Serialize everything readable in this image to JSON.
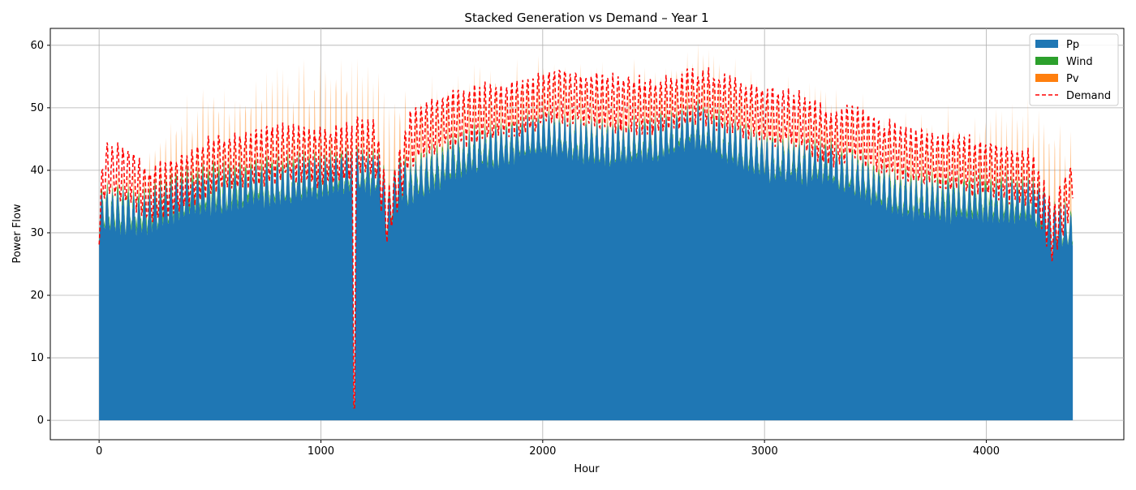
{
  "chart_data": {
    "type": "area",
    "title": "Stacked Generation vs Demand – Year 1",
    "xlabel": "Hour",
    "ylabel": "Power Flow",
    "xlim": [
      -220,
      4620
    ],
    "ylim": [
      -3.1,
      62.7
    ],
    "xticks": [
      0,
      1000,
      2000,
      3000,
      4000
    ],
    "yticks": [
      0,
      10,
      20,
      30,
      40,
      50,
      60
    ],
    "grid": true,
    "legend_position": "upper right",
    "series": [
      {
        "name": "Pp",
        "kind": "stacked-area",
        "color": "#1f77b4",
        "description_points_x": [
          0,
          200,
          400,
          800,
          1200,
          1400,
          1600,
          2000,
          2300,
          2500,
          2700,
          3000,
          3300,
          3600,
          3900,
          4200,
          4390
        ],
        "values": [
          34,
          33,
          36,
          38,
          40,
          38,
          42,
          46,
          44,
          45,
          47,
          42,
          41,
          36,
          35,
          35,
          30
        ]
      },
      {
        "name": "Wind",
        "kind": "stacked-area",
        "color": "#2ca02c",
        "x": [
          0,
          500,
          1000,
          1500,
          2000,
          2500,
          3000,
          3500,
          4000,
          4390
        ],
        "values": [
          1.0,
          1.5,
          0.8,
          1.0,
          0.5,
          0.7,
          0.6,
          0.8,
          1.2,
          0.5
        ]
      },
      {
        "name": "Pv",
        "kind": "stacked-area",
        "color": "#ff7f0e",
        "x": [
          0,
          500,
          1000,
          1500,
          2000,
          2500,
          3000,
          3500,
          4000,
          4390
        ],
        "values": [
          0,
          12,
          14,
          10,
          8,
          8,
          8,
          8,
          10,
          12
        ]
      },
      {
        "name": "Demand",
        "kind": "line",
        "style": "dashed",
        "color": "#ff0000",
        "x": [
          0,
          25,
          150,
          220,
          380,
          500,
          700,
          880,
          1000,
          1140,
          1150,
          1160,
          1250,
          1300,
          1400,
          1500,
          1700,
          1900,
          2000,
          2050,
          2300,
          2500,
          2600,
          2700,
          2800,
          3000,
          3150,
          3300,
          3400,
          3500,
          3700,
          3900,
          4000,
          4200,
          4300,
          4390
        ],
        "values": [
          36,
          44,
          43,
          40,
          42,
          45,
          46,
          47,
          46,
          47,
          2,
          48,
          47,
          36,
          49,
          51,
          53,
          54,
          55,
          56,
          55,
          54,
          55,
          56,
          55,
          53,
          52,
          49,
          50,
          48,
          46,
          45,
          44,
          43,
          34,
          42
        ]
      }
    ],
    "legend": [
      "Pp",
      "Wind",
      "Pv",
      "Demand"
    ]
  }
}
